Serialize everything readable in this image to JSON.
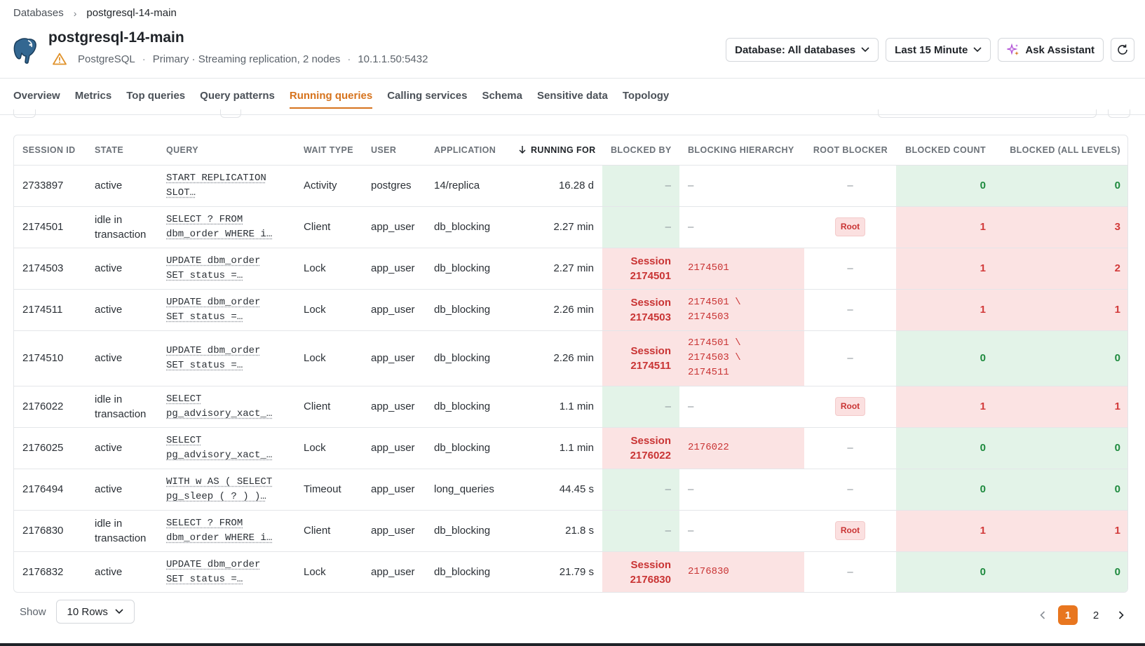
{
  "breadcrumb": {
    "parent": "Databases",
    "current": "postgresql-14-main"
  },
  "database": {
    "title": "postgresql-14-main",
    "engine": "PostgreSQL",
    "role": "Primary · Streaming replication, 2 nodes",
    "address": "10.1.1.50:5432",
    "logo_icon": "elephant-icon",
    "status_icon": "warning-triangle-icon"
  },
  "actions": {
    "database_filter": "Database: All databases",
    "time_range": "Last 15 Minute",
    "assistant": "Ask Assistant",
    "refresh_icon": "refresh-icon"
  },
  "tabs": [
    {
      "label": "Overview"
    },
    {
      "label": "Metrics"
    },
    {
      "label": "Top queries"
    },
    {
      "label": "Query patterns"
    },
    {
      "label": "Running queries"
    },
    {
      "label": "Calling services"
    },
    {
      "label": "Schema"
    },
    {
      "label": "Sensitive data"
    },
    {
      "label": "Topology"
    }
  ],
  "active_tab": "Running queries",
  "table": {
    "columns": [
      "SESSION ID",
      "STATE",
      "QUERY",
      "WAIT TYPE",
      "USER",
      "APPLICATION",
      "RUNNING FOR",
      "BLOCKED BY",
      "BLOCKING HIERARCHY",
      "ROOT BLOCKER",
      "BLOCKED COUNT",
      "BLOCKED (ALL LEVELS)"
    ],
    "rows": [
      {
        "session_id": "2733897",
        "state": "active",
        "query_1": "START REPLICATION",
        "query_2": "SLOT…",
        "wait": "Activity",
        "user": "postgres",
        "app": "14/replica",
        "running": "16.28 d",
        "blocked_by_1": "–",
        "blocked_by_2": "",
        "hier_1": "–",
        "hier_2": "",
        "hier_3": "",
        "root": "–",
        "count": "0",
        "all": "0"
      },
      {
        "session_id": "2174501",
        "state": "idle in transaction",
        "query_1": "SELECT ? FROM",
        "query_2": "dbm_order WHERE i…",
        "wait": "Client",
        "user": "app_user",
        "app": "db_blocking",
        "running": "2.27 min",
        "blocked_by_1": "–",
        "blocked_by_2": "",
        "hier_1": "–",
        "hier_2": "",
        "hier_3": "",
        "root": "Root",
        "count": "1",
        "all": "3"
      },
      {
        "session_id": "2174503",
        "state": "active",
        "query_1": "UPDATE dbm_order",
        "query_2": "SET status =…",
        "wait": "Lock",
        "user": "app_user",
        "app": "db_blocking",
        "running": "2.27 min",
        "blocked_by_1": "Session",
        "blocked_by_2": "2174501",
        "hier_1": "2174501",
        "hier_2": "",
        "hier_3": "",
        "root": "–",
        "count": "1",
        "all": "2"
      },
      {
        "session_id": "2174511",
        "state": "active",
        "query_1": "UPDATE dbm_order",
        "query_2": "SET status =…",
        "wait": "Lock",
        "user": "app_user",
        "app": "db_blocking",
        "running": "2.26 min",
        "blocked_by_1": "Session",
        "blocked_by_2": "2174503",
        "hier_1": "2174501 \\",
        "hier_2": "2174503",
        "hier_3": "",
        "root": "–",
        "count": "1",
        "all": "1"
      },
      {
        "session_id": "2174510",
        "state": "active",
        "query_1": "UPDATE dbm_order",
        "query_2": "SET status =…",
        "wait": "Lock",
        "user": "app_user",
        "app": "db_blocking",
        "running": "2.26 min",
        "blocked_by_1": "Session",
        "blocked_by_2": "2174511",
        "hier_1": "2174501 \\",
        "hier_2": "2174503 \\",
        "hier_3": "2174511",
        "root": "–",
        "count": "0",
        "all": "0"
      },
      {
        "session_id": "2176022",
        "state": "idle in transaction",
        "query_1": "SELECT",
        "query_2": "pg_advisory_xact_…",
        "wait": "Client",
        "user": "app_user",
        "app": "db_blocking",
        "running": "1.1 min",
        "blocked_by_1": "–",
        "blocked_by_2": "",
        "hier_1": "–",
        "hier_2": "",
        "hier_3": "",
        "root": "Root",
        "count": "1",
        "all": "1"
      },
      {
        "session_id": "2176025",
        "state": "active",
        "query_1": "SELECT",
        "query_2": "pg_advisory_xact_…",
        "wait": "Lock",
        "user": "app_user",
        "app": "db_blocking",
        "running": "1.1 min",
        "blocked_by_1": "Session",
        "blocked_by_2": "2176022",
        "hier_1": "2176022",
        "hier_2": "",
        "hier_3": "",
        "root": "–",
        "count": "0",
        "all": "0"
      },
      {
        "session_id": "2176494",
        "state": "active",
        "query_1": "WITH w AS ( SELECT",
        "query_2": "pg_sleep ( ? ) )…",
        "wait": "Timeout",
        "user": "app_user",
        "app": "long_queries",
        "running": "44.45 s",
        "blocked_by_1": "–",
        "blocked_by_2": "",
        "hier_1": "–",
        "hier_2": "",
        "hier_3": "",
        "root": "–",
        "count": "0",
        "all": "0"
      },
      {
        "session_id": "2176830",
        "state": "idle in transaction",
        "query_1": "SELECT ? FROM",
        "query_2": "dbm_order WHERE i…",
        "wait": "Client",
        "user": "app_user",
        "app": "db_blocking",
        "running": "21.8 s",
        "blocked_by_1": "–",
        "blocked_by_2": "",
        "hier_1": "–",
        "hier_2": "",
        "hier_3": "",
        "root": "Root",
        "count": "1",
        "all": "1"
      },
      {
        "session_id": "2176832",
        "state": "active",
        "query_1": "UPDATE dbm_order",
        "query_2": "SET status =…",
        "wait": "Lock",
        "user": "app_user",
        "app": "db_blocking",
        "running": "21.79 s",
        "blocked_by_1": "Session",
        "blocked_by_2": "2176830",
        "hier_1": "2176830",
        "hier_2": "",
        "hier_3": "",
        "root": "–",
        "count": "0",
        "all": "0"
      }
    ]
  },
  "footer": {
    "show_label": "Show",
    "rows_value": "10 Rows",
    "pages": [
      "1",
      "2"
    ],
    "current_page": "1"
  },
  "colors": {
    "accent": "#e8761f",
    "blocked_bg": "#fbe3e3",
    "ok_bg": "#e3f3e8",
    "danger_text": "#c93434",
    "ok_text": "#1e8a3e"
  }
}
